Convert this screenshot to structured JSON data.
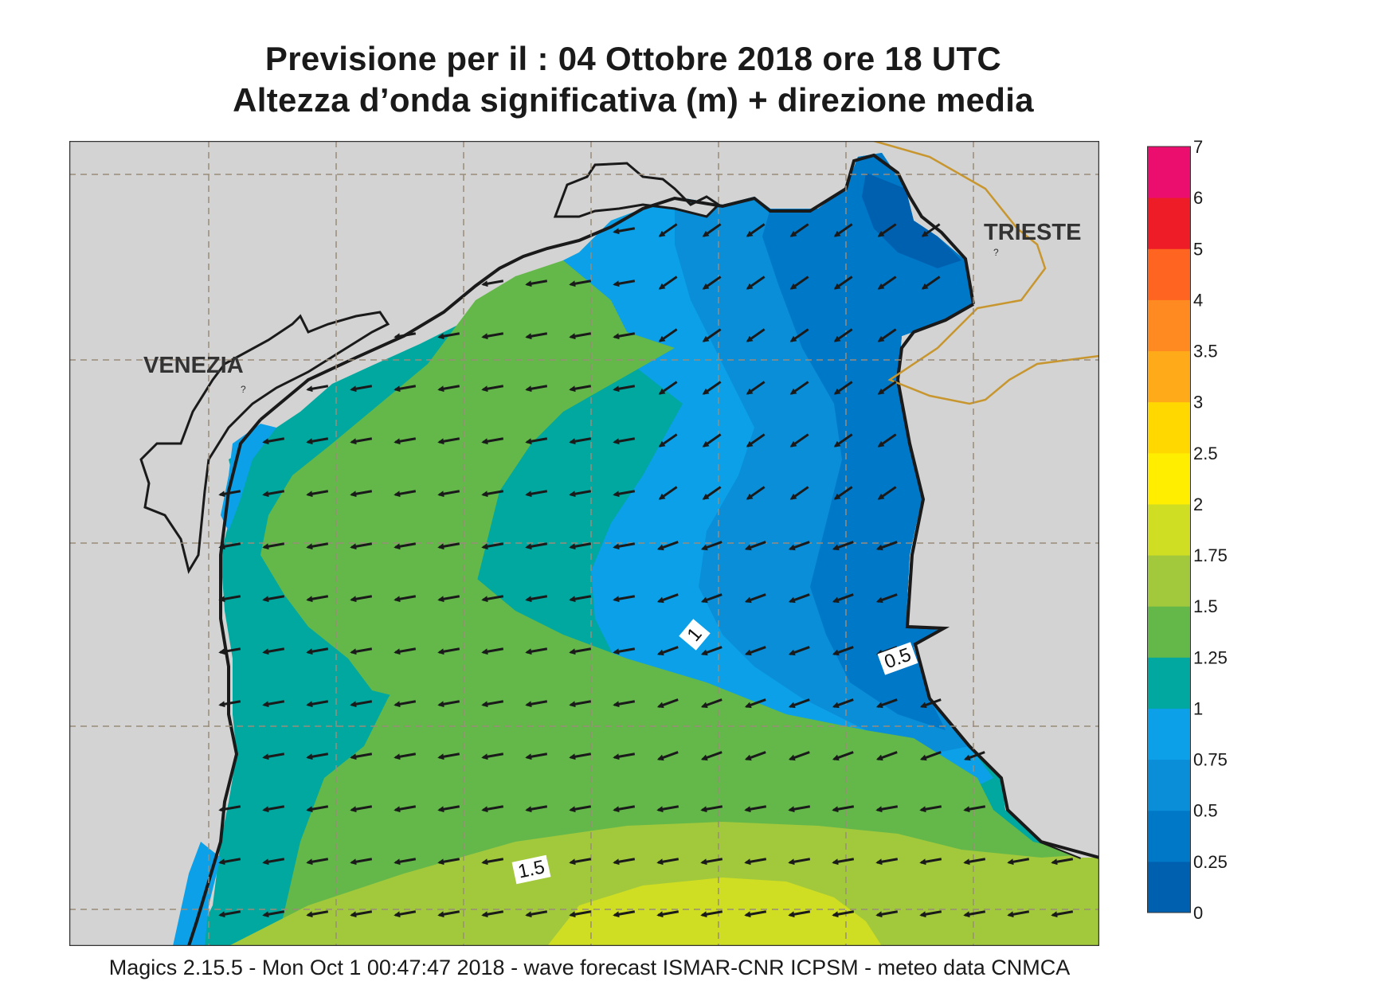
{
  "header": {
    "title_line1": "Previsione per il  :  04  Ottobre  2018   ore 18 UTC",
    "title_line2": "Altezza d’onda significativa (m) + direzione media"
  },
  "map": {
    "cities": [
      {
        "name": "VENEZIA"
      },
      {
        "name": "TRIESTE"
      }
    ],
    "contour_labels": [
      "1",
      "0.5",
      "1.5"
    ],
    "arrow_direction": "towards west-southwest (waves from east-northeast)",
    "colors": {
      "land": "#d3d3d3",
      "coast": "#1a1a1a",
      "border": "#c8962e",
      "grid": "#9a8c7a"
    }
  },
  "legend": {
    "labels": [
      "0",
      "0.25",
      "0.5",
      "0.75",
      "1",
      "1.25",
      "1.5",
      "1.75",
      "2",
      "2.5",
      "3",
      "3.5",
      "4",
      "5",
      "6",
      "7"
    ],
    "colors": [
      "#0060b0",
      "#0078c8",
      "#0a8ed8",
      "#0ba0e8",
      "#00a8a0",
      "#64b84a",
      "#a2c83c",
      "#cfde22",
      "#ffee00",
      "#ffd800",
      "#ffaa18",
      "#ff8a22",
      "#ff6420",
      "#ee1c26",
      "#ec0e6e"
    ]
  },
  "footer": {
    "text": "Magics 2.15.5 - Mon Oct  1 00:47:47 2018 - wave forecast  ISMAR-CNR  ICPSM - meteo data   CNMCA"
  }
}
